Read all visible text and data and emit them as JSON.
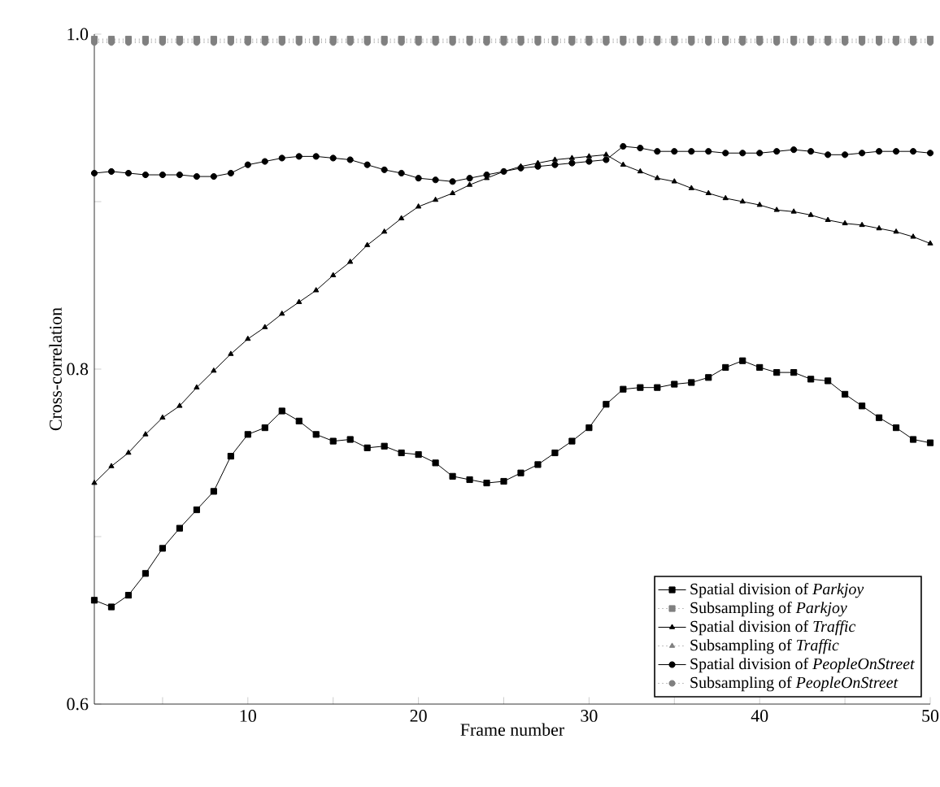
{
  "chart_data": {
    "type": "line",
    "xlabel": "Frame number",
    "ylabel": "Cross-correlation",
    "x": [
      1,
      2,
      3,
      4,
      5,
      6,
      7,
      8,
      9,
      10,
      11,
      12,
      13,
      14,
      15,
      16,
      17,
      18,
      19,
      20,
      21,
      22,
      23,
      24,
      25,
      26,
      27,
      28,
      29,
      30,
      31,
      32,
      33,
      34,
      35,
      36,
      37,
      38,
      39,
      40,
      41,
      42,
      43,
      44,
      45,
      46,
      47,
      48,
      49,
      50
    ],
    "xlim": [
      1,
      50
    ],
    "ylim": [
      0.6,
      1.0
    ],
    "xticks": [
      {
        "value": 5,
        "label": null
      },
      10,
      {
        "value": 15,
        "label": null
      },
      20,
      {
        "value": 25,
        "label": null
      },
      30,
      {
        "value": 35,
        "label": null
      },
      40,
      {
        "value": 45,
        "label": null
      },
      50
    ],
    "yticks": [
      0.6,
      {
        "value": 0.7,
        "label": null
      },
      0.8,
      {
        "value": 0.9,
        "label": null
      },
      {
        "value": 1.0,
        "label": "1.0"
      }
    ],
    "grid": false,
    "legend": "bottom right",
    "series": [
      {
        "name": "Spatial division of *Parkjoy*",
        "color": "#000000",
        "marker": "square",
        "line_style": "solid",
        "values": [
          0.662,
          0.658,
          0.665,
          0.678,
          0.693,
          0.705,
          0.716,
          0.727,
          0.748,
          0.761,
          0.765,
          0.775,
          0.769,
          0.761,
          0.757,
          0.758,
          0.753,
          0.754,
          0.75,
          0.749,
          0.744,
          0.736,
          0.734,
          0.732,
          0.733,
          0.738,
          0.743,
          0.75,
          0.757,
          0.765,
          0.779,
          0.788,
          0.789,
          0.789,
          0.791,
          0.792,
          0.795,
          0.801,
          0.805,
          0.801,
          0.798,
          0.798,
          0.794,
          0.793,
          0.785,
          0.778,
          0.771,
          0.765,
          0.758,
          0.756
        ]
      },
      {
        "name": "Subsampling of *Parkjoy*",
        "color": "#808080",
        "marker": "square",
        "line_style": "dotted",
        "values": [
          0.997,
          0.997,
          0.997,
          0.997,
          0.997,
          0.997,
          0.997,
          0.997,
          0.997,
          0.997,
          0.997,
          0.997,
          0.997,
          0.997,
          0.997,
          0.997,
          0.997,
          0.997,
          0.997,
          0.997,
          0.997,
          0.997,
          0.997,
          0.997,
          0.997,
          0.997,
          0.997,
          0.997,
          0.997,
          0.997,
          0.997,
          0.997,
          0.997,
          0.997,
          0.997,
          0.997,
          0.997,
          0.997,
          0.997,
          0.997,
          0.997,
          0.997,
          0.997,
          0.997,
          0.997,
          0.997,
          0.997,
          0.997,
          0.997,
          0.997
        ]
      },
      {
        "name": "Spatial division of *Traffic*",
        "color": "#000000",
        "marker": "triangle",
        "line_style": "solid",
        "values": [
          0.732,
          0.742,
          0.75,
          0.761,
          0.771,
          0.778,
          0.789,
          0.799,
          0.809,
          0.818,
          0.825,
          0.833,
          0.84,
          0.847,
          0.856,
          0.864,
          0.874,
          0.882,
          0.89,
          0.897,
          0.901,
          0.905,
          0.91,
          0.914,
          0.918,
          0.921,
          0.923,
          0.925,
          0.926,
          0.927,
          0.928,
          0.922,
          0.918,
          0.914,
          0.912,
          0.908,
          0.905,
          0.902,
          0.9,
          0.898,
          0.895,
          0.894,
          0.892,
          0.889,
          0.887,
          0.886,
          0.884,
          0.882,
          0.879,
          0.875
        ]
      },
      {
        "name": "Subsampling of *Traffic*",
        "color": "#808080",
        "marker": "triangle",
        "line_style": "dotted",
        "values": [
          0.996,
          0.996,
          0.996,
          0.996,
          0.996,
          0.996,
          0.996,
          0.996,
          0.996,
          0.996,
          0.996,
          0.996,
          0.996,
          0.996,
          0.996,
          0.996,
          0.996,
          0.996,
          0.996,
          0.996,
          0.996,
          0.996,
          0.996,
          0.996,
          0.996,
          0.996,
          0.996,
          0.996,
          0.996,
          0.996,
          0.996,
          0.996,
          0.996,
          0.996,
          0.996,
          0.996,
          0.996,
          0.996,
          0.996,
          0.996,
          0.996,
          0.996,
          0.996,
          0.996,
          0.996,
          0.996,
          0.996,
          0.996,
          0.996,
          0.996
        ]
      },
      {
        "name": "Spatial division of *PeopleOnStreet*",
        "color": "#000000",
        "marker": "circle",
        "line_style": "solid",
        "values": [
          0.917,
          0.918,
          0.917,
          0.916,
          0.916,
          0.916,
          0.915,
          0.915,
          0.917,
          0.922,
          0.924,
          0.926,
          0.927,
          0.927,
          0.926,
          0.925,
          0.922,
          0.919,
          0.917,
          0.914,
          0.913,
          0.912,
          0.914,
          0.916,
          0.918,
          0.92,
          0.921,
          0.922,
          0.923,
          0.924,
          0.925,
          0.933,
          0.932,
          0.93,
          0.93,
          0.93,
          0.93,
          0.929,
          0.929,
          0.929,
          0.93,
          0.931,
          0.93,
          0.928,
          0.928,
          0.929,
          0.93,
          0.93,
          0.93,
          0.929
        ]
      },
      {
        "name": "Subsampling of *PeopleOnStreet*",
        "color": "#808080",
        "marker": "circle",
        "line_style": "dotted",
        "values": [
          0.995,
          0.995,
          0.995,
          0.995,
          0.995,
          0.995,
          0.995,
          0.995,
          0.995,
          0.995,
          0.995,
          0.995,
          0.995,
          0.995,
          0.995,
          0.995,
          0.995,
          0.995,
          0.995,
          0.995,
          0.995,
          0.995,
          0.995,
          0.995,
          0.995,
          0.995,
          0.995,
          0.995,
          0.995,
          0.995,
          0.995,
          0.995,
          0.995,
          0.995,
          0.995,
          0.995,
          0.995,
          0.995,
          0.995,
          0.995,
          0.995,
          0.995,
          0.995,
          0.995,
          0.995,
          0.995,
          0.995,
          0.995,
          0.995,
          0.995
        ]
      }
    ]
  }
}
